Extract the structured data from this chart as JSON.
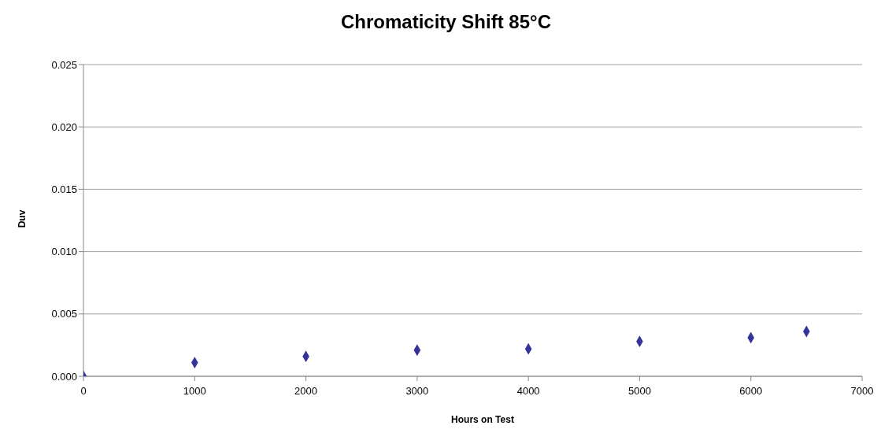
{
  "chart_data": {
    "type": "scatter",
    "title": "Chromaticity Shift 85°C",
    "xlabel": "Hours on Test",
    "ylabel": "Duv",
    "x": [
      0,
      1000,
      2000,
      3000,
      4000,
      5000,
      6000,
      6500
    ],
    "series": [
      {
        "color": "#333399",
        "values": [
          0,
          0.0011,
          0.0016,
          0.0021,
          0.0022,
          0.0028,
          0.0031,
          0.0036
        ]
      }
    ],
    "xlim": [
      0,
      7000
    ],
    "xticks": [
      0,
      1000,
      2000,
      3000,
      4000,
      5000,
      6000,
      7000
    ],
    "ylim": [
      0,
      0.025
    ],
    "yticks": [
      {
        "value": 0,
        "label": "0.000"
      },
      {
        "value": 0.005,
        "label": "0.005"
      },
      {
        "value": 0.01,
        "label": "0.010"
      },
      {
        "value": 0.015,
        "label": "0.015"
      },
      {
        "value": 0.02,
        "label": "0.020"
      },
      {
        "value": 0.025,
        "label": "0.025"
      }
    ],
    "grid": "y",
    "marker": "diamond"
  }
}
